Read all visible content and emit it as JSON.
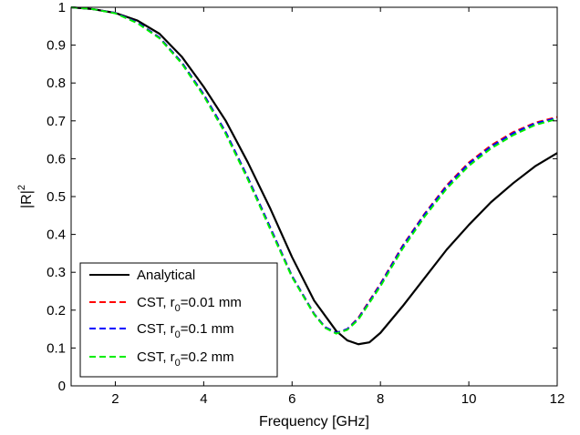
{
  "chart_data": {
    "type": "line",
    "title": "",
    "xlabel": "Frequency [GHz]",
    "ylabel": "|R|",
    "ylabel_sup": "2",
    "xlim": [
      1,
      12
    ],
    "ylim": [
      0,
      1
    ],
    "xticks": [
      2,
      4,
      6,
      8,
      10,
      12
    ],
    "yticks": [
      0,
      0.1,
      0.2,
      0.3,
      0.4,
      0.5,
      0.6,
      0.7,
      0.8,
      0.9,
      1
    ],
    "grid": false,
    "legend_position": "bottom-left",
    "series": [
      {
        "name": "Analytical",
        "name_parts": [
          "Analytical",
          "",
          ""
        ],
        "color": "#000000",
        "style": "solid",
        "x": [
          1,
          1.5,
          2,
          2.5,
          3,
          3.5,
          4,
          4.5,
          5,
          5.5,
          6,
          6.5,
          7,
          7.25,
          7.5,
          7.75,
          8,
          8.5,
          9,
          9.5,
          10,
          10.5,
          11,
          11.5,
          12
        ],
        "y": [
          1.0,
          0.995,
          0.985,
          0.965,
          0.93,
          0.87,
          0.79,
          0.7,
          0.59,
          0.47,
          0.34,
          0.225,
          0.145,
          0.12,
          0.11,
          0.115,
          0.14,
          0.21,
          0.285,
          0.36,
          0.425,
          0.485,
          0.535,
          0.58,
          0.615
        ]
      },
      {
        "name": "CST, r0=0.01 mm",
        "name_parts": [
          "CST, r",
          "0",
          "=0.01 mm"
        ],
        "color": "#ff0000",
        "style": "dashed",
        "x": [
          1,
          1.5,
          2,
          2.5,
          3,
          3.5,
          4,
          4.5,
          5,
          5.5,
          6,
          6.5,
          6.75,
          7,
          7.25,
          7.5,
          8,
          8.5,
          9,
          9.5,
          10,
          10.5,
          11,
          11.5,
          12
        ],
        "y": [
          1.0,
          0.995,
          0.985,
          0.96,
          0.92,
          0.855,
          0.77,
          0.67,
          0.55,
          0.42,
          0.29,
          0.19,
          0.155,
          0.14,
          0.15,
          0.18,
          0.27,
          0.37,
          0.455,
          0.53,
          0.59,
          0.635,
          0.67,
          0.695,
          0.71
        ]
      },
      {
        "name": "CST, r0=0.1 mm",
        "name_parts": [
          "CST, r",
          "0",
          "=0.1 mm"
        ],
        "color": "#0000ff",
        "style": "dashed",
        "x": [
          1,
          1.5,
          2,
          2.5,
          3,
          3.5,
          4,
          4.5,
          5,
          5.5,
          6,
          6.5,
          6.75,
          7,
          7.25,
          7.5,
          8,
          8.5,
          9,
          9.5,
          10,
          10.5,
          11,
          11.5,
          12
        ],
        "y": [
          1.0,
          0.995,
          0.985,
          0.96,
          0.92,
          0.855,
          0.77,
          0.67,
          0.55,
          0.42,
          0.29,
          0.19,
          0.155,
          0.14,
          0.15,
          0.178,
          0.268,
          0.368,
          0.453,
          0.527,
          0.587,
          0.632,
          0.667,
          0.693,
          0.708
        ]
      },
      {
        "name": "CST, r0=0.2 mm",
        "name_parts": [
          "CST, r",
          "0",
          "=0.2 mm"
        ],
        "color": "#00ee00",
        "style": "dashed",
        "x": [
          1,
          1.5,
          2,
          2.5,
          3,
          3.5,
          4,
          4.5,
          5,
          5.5,
          6,
          6.5,
          6.75,
          7,
          7.25,
          7.5,
          8,
          8.5,
          9,
          9.5,
          10,
          10.5,
          11,
          11.5,
          12
        ],
        "y": [
          1.0,
          0.995,
          0.984,
          0.958,
          0.918,
          0.852,
          0.766,
          0.665,
          0.545,
          0.415,
          0.287,
          0.188,
          0.153,
          0.138,
          0.148,
          0.175,
          0.263,
          0.362,
          0.447,
          0.521,
          0.581,
          0.627,
          0.662,
          0.689,
          0.705
        ]
      }
    ]
  }
}
